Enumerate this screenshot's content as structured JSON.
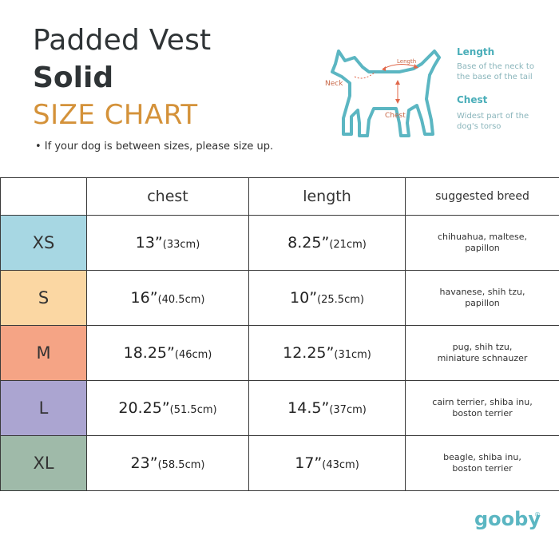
{
  "header": {
    "title_line1": "Padded Vest",
    "title_line2": "Solid",
    "title_line3": "SIZE CHART",
    "note": "• If your dog is between sizes, please size up."
  },
  "diagram": {
    "label_neck": "Neck",
    "label_length": "Length",
    "label_chest": "Chest",
    "legend": {
      "length_title": "Length",
      "length_desc_1": "Base of the neck to",
      "length_desc_2": "the base of the tail",
      "chest_title": "Chest",
      "chest_desc_1": "Widest part of the",
      "chest_desc_2": "dog's torso"
    }
  },
  "table": {
    "headers": [
      "",
      "chest",
      "length",
      "suggested breed"
    ],
    "rows": [
      {
        "size": "XS",
        "color": "#a7d7e3",
        "chest_in": "13”",
        "chest_cm": "(33cm)",
        "length_in": "8.25”",
        "length_cm": "(21cm)",
        "breed_1": "chihuahua, maltese,",
        "breed_2": "papillon"
      },
      {
        "size": "S",
        "color": "#fbd7a3",
        "chest_in": "16”",
        "chest_cm": "(40.5cm)",
        "length_in": "10”",
        "length_cm": "(25.5cm)",
        "breed_1": "havanese, shih tzu,",
        "breed_2": "papillon"
      },
      {
        "size": "M",
        "color": "#f5a485",
        "chest_in": "18.25”",
        "chest_cm": "(46cm)",
        "length_in": "12.25”",
        "length_cm": "(31cm)",
        "breed_1": "pug, shih tzu,",
        "breed_2": "miniature schnauzer"
      },
      {
        "size": "L",
        "color": "#aba5d1",
        "chest_in": "20.25”",
        "chest_cm": "(51.5cm)",
        "length_in": "14.5”",
        "length_cm": "(37cm)",
        "breed_1": "cairn terrier, shiba inu,",
        "breed_2": "boston terrier"
      },
      {
        "size": "XL",
        "color": "#9fbaa9",
        "chest_in": "23”",
        "chest_cm": "(58.5cm)",
        "length_in": "17”",
        "length_cm": "(43cm)",
        "breed_1": "beagle, shiba inu,",
        "breed_2": "boston terrier"
      }
    ]
  },
  "brand": {
    "logo_text": "gooby",
    "logo_mark": "®"
  },
  "colors": {
    "accent_orange": "#d4923a",
    "brand_teal": "#5bb6c2",
    "arrow_red": "#e0674a"
  }
}
